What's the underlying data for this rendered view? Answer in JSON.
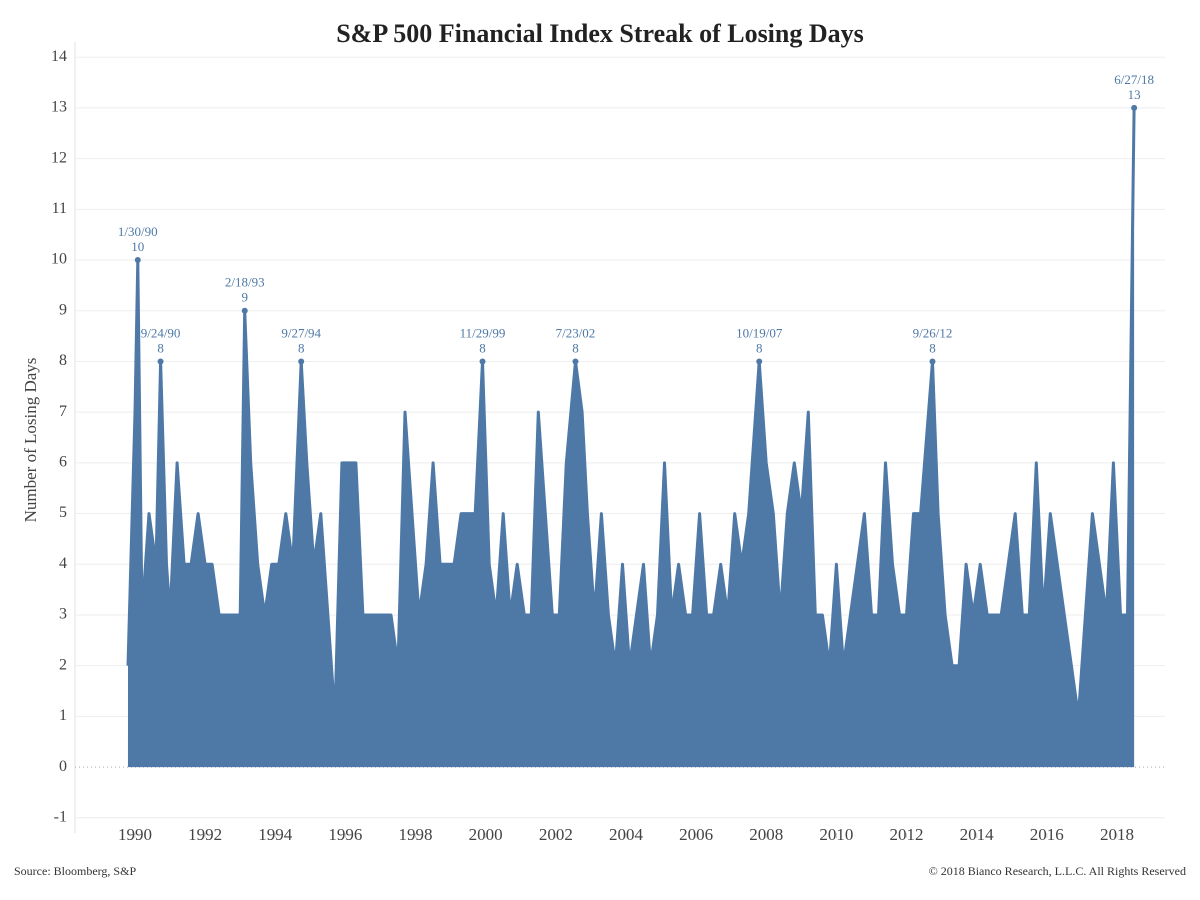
{
  "chart_data": {
    "type": "line",
    "title": "S&P 500 Financial Index Streak of Losing Days",
    "y_label": "Number of Losing Days",
    "source": "Source: Bloomberg, S&P",
    "copyright": "© 2018 Bianco Research, L.L.C. All Rights Reserved",
    "color": "#4e79a7",
    "x": [
      1989.8,
      1990.0,
      1990.08,
      1990.2,
      1990.4,
      1990.6,
      1990.73,
      1990.9,
      1991.0,
      1991.2,
      1991.4,
      1991.6,
      1991.8,
      1992.0,
      1992.2,
      1992.4,
      1992.6,
      1992.8,
      1993.0,
      1993.13,
      1993.3,
      1993.5,
      1993.7,
      1993.9,
      1994.1,
      1994.3,
      1994.5,
      1994.74,
      1994.9,
      1995.1,
      1995.3,
      1995.5,
      1995.7,
      1995.9,
      1996.1,
      1996.3,
      1996.5,
      1996.7,
      1996.9,
      1997.1,
      1997.3,
      1997.5,
      1997.7,
      1997.9,
      1998.1,
      1998.3,
      1998.5,
      1998.7,
      1998.9,
      1999.1,
      1999.3,
      1999.5,
      1999.7,
      1999.91,
      2000.1,
      2000.3,
      2000.5,
      2000.7,
      2000.9,
      2001.1,
      2001.3,
      2001.5,
      2001.7,
      2001.9,
      2002.1,
      2002.3,
      2002.56,
      2002.75,
      2002.9,
      2003.1,
      2003.3,
      2003.5,
      2003.7,
      2003.9,
      2004.1,
      2004.3,
      2004.5,
      2004.7,
      2004.9,
      2005.1,
      2005.3,
      2005.5,
      2005.7,
      2005.9,
      2006.1,
      2006.3,
      2006.5,
      2006.7,
      2006.9,
      2007.1,
      2007.3,
      2007.5,
      2007.8,
      2008.0,
      2008.2,
      2008.4,
      2008.6,
      2008.8,
      2009.0,
      2009.2,
      2009.4,
      2009.6,
      2009.8,
      2010.0,
      2010.2,
      2010.4,
      2010.6,
      2010.8,
      2011.0,
      2011.2,
      2011.4,
      2011.6,
      2011.8,
      2012.0,
      2012.2,
      2012.4,
      2012.74,
      2012.9,
      2013.1,
      2013.3,
      2013.5,
      2013.7,
      2013.9,
      2014.1,
      2014.3,
      2014.5,
      2014.7,
      2014.9,
      2015.1,
      2015.3,
      2015.5,
      2015.7,
      2015.9,
      2016.1,
      2016.3,
      2016.5,
      2016.7,
      2016.9,
      2017.1,
      2017.3,
      2017.5,
      2017.7,
      2017.9,
      2018.1,
      2018.3,
      2018.49
    ],
    "values": [
      2,
      7,
      10,
      3,
      5,
      4,
      8,
      4,
      3,
      6,
      4,
      4,
      5,
      4,
      4,
      3,
      3,
      3,
      3,
      9,
      6,
      4,
      3,
      4,
      4,
      5,
      4,
      8,
      6,
      4,
      5,
      3,
      1,
      6,
      6,
      6,
      3,
      3,
      3,
      3,
      3,
      2,
      7,
      5,
      3,
      4,
      6,
      4,
      4,
      4,
      5,
      5,
      5,
      8,
      4,
      3,
      5,
      3,
      4,
      3,
      3,
      7,
      5,
      3,
      3,
      6,
      8,
      7,
      5,
      3,
      5,
      3,
      2,
      4,
      2,
      3,
      4,
      2,
      3,
      6,
      3,
      4,
      3,
      3,
      5,
      3,
      3,
      4,
      3,
      5,
      4,
      5,
      8,
      6,
      5,
      3,
      5,
      6,
      5,
      7,
      3,
      3,
      2,
      4,
      2,
      3,
      4,
      5,
      3,
      3,
      6,
      4,
      3,
      3,
      5,
      5,
      8,
      5,
      3,
      2,
      2,
      4,
      3,
      4,
      3,
      3,
      3,
      4,
      5,
      3,
      3,
      6,
      3,
      5,
      4,
      3,
      2,
      1,
      3,
      5,
      4,
      3,
      6,
      3,
      3,
      13
    ],
    "annotations": [
      {
        "text": "1/30/90",
        "x": 1990.08,
        "y": 10
      },
      {
        "text": "9/24/90",
        "x": 1990.73,
        "y": 8
      },
      {
        "text": "2/18/93",
        "x": 1993.13,
        "y": 9
      },
      {
        "text": "9/27/94",
        "x": 1994.74,
        "y": 8
      },
      {
        "text": "11/29/99",
        "x": 1999.91,
        "y": 8
      },
      {
        "text": "7/23/02",
        "x": 2002.56,
        "y": 8
      },
      {
        "text": "10/19/07",
        "x": 2007.8,
        "y": 8
      },
      {
        "text": "9/26/12",
        "x": 2012.74,
        "y": 8
      },
      {
        "text": "6/27/18",
        "x": 2018.49,
        "y": 13
      }
    ],
    "xlim": [
      1988.29,
      2019.37
    ],
    "xticks": [
      1990,
      1992,
      1994,
      1996,
      1998,
      2000,
      2002,
      2004,
      2006,
      2008,
      2010,
      2012,
      2014,
      2016,
      2018
    ],
    "ylim": [
      -1.3,
      14.3
    ],
    "yticks": [
      -1,
      0,
      1,
      2,
      3,
      4,
      5,
      6,
      7,
      8,
      9,
      10,
      11,
      12,
      13,
      14
    ],
    "grid": true
  }
}
